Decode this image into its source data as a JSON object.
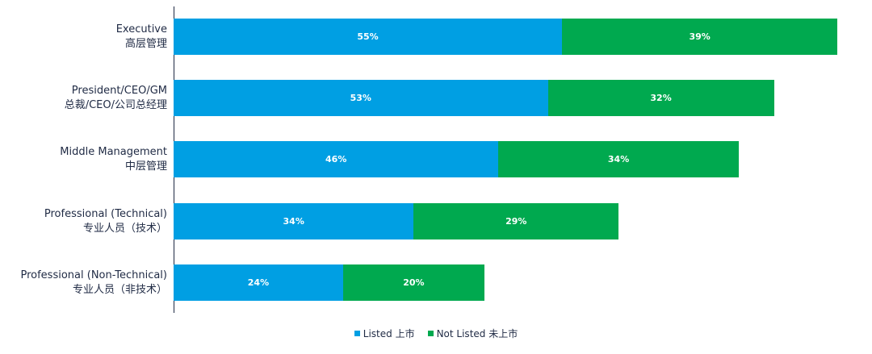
{
  "chart_data": {
    "type": "bar",
    "orientation": "horizontal",
    "stacked": true,
    "categories": [
      [
        "Executive",
        "高层管理"
      ],
      [
        "President/CEO/GM",
        "总裁/CEO/公司总经理"
      ],
      [
        "Middle Management",
        "中层管理"
      ],
      [
        "Professional (Technical)",
        "专业人员（技术）"
      ],
      [
        "Professional (Non-Technical)",
        "专业人员（非技术）"
      ]
    ],
    "series": [
      {
        "name": "Listed 上市",
        "color": "#009fe3",
        "values": [
          55,
          53,
          46,
          34,
          24
        ]
      },
      {
        "name": "Not Listed 未上市",
        "color": "#00a94f",
        "values": [
          39,
          32,
          34,
          29,
          20
        ]
      }
    ],
    "value_format": "percent",
    "xlim": [
      0,
      95
    ],
    "legend_position": "bottom-center",
    "grid": false
  }
}
